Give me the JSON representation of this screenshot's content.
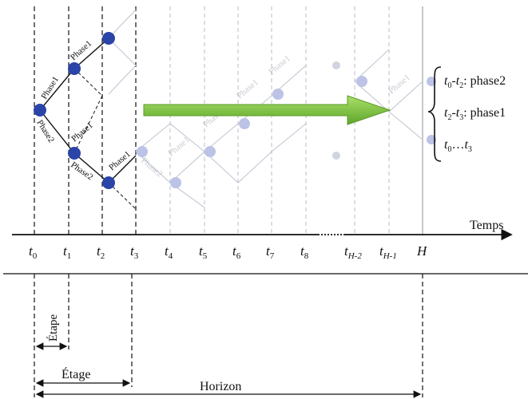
{
  "time_axis": {
    "label": "Temps",
    "ticks": [
      {
        "main": "t",
        "sub": "0"
      },
      {
        "main": "t",
        "sub": "1"
      },
      {
        "main": "t",
        "sub": "2"
      },
      {
        "main": "t",
        "sub": "3"
      },
      {
        "main": "t",
        "sub": "4"
      },
      {
        "main": "t",
        "sub": "5"
      },
      {
        "main": "t",
        "sub": "6"
      },
      {
        "main": "t",
        "sub": "7"
      },
      {
        "main": "t",
        "sub": "8"
      },
      {
        "main": "t",
        "sub": "H-2"
      },
      {
        "main": "t",
        "sub": "H-1"
      },
      {
        "main": "H",
        "sub": ""
      }
    ]
  },
  "phase_labels": {
    "phase1": "Phase1",
    "phase2": "Phase2"
  },
  "legend": {
    "line1": {
      "a": "t",
      "a_sub": "0",
      "sep": "-",
      "b": "t",
      "b_sub": "2",
      "text": ": phase2"
    },
    "line2": {
      "a": "t",
      "a_sub": "2",
      "sep": "-",
      "b": "t",
      "b_sub": "3",
      "text": ": phase1"
    },
    "line3": {
      "a": "t",
      "a_sub": "0",
      "sep": "…",
      "b": "t",
      "b_sub": "3"
    }
  },
  "spans": {
    "etape": "Étape",
    "etage": "Étage",
    "horizon": "Horizon"
  },
  "colors": {
    "node": "#2a44a8",
    "node_faint": "#b8bfe3",
    "arrow": "#7cc23b",
    "axis": "#111111"
  }
}
